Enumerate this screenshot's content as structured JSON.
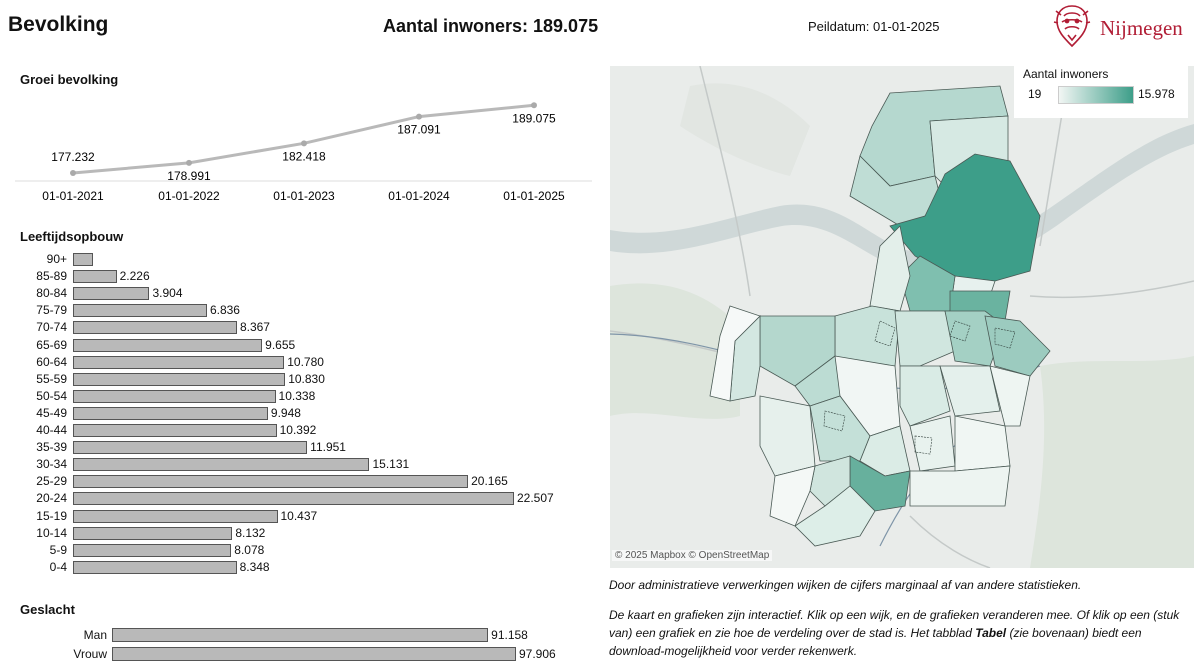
{
  "header": {
    "title": "Bevolking",
    "population": "Aantal inwoners: 189.075",
    "date": "Peildatum: 01-01-2025",
    "logo_text": "Nijmegen"
  },
  "growth": {
    "title": "Groei bevolking",
    "chart_data": {
      "type": "line",
      "categories": [
        "01-01-2021",
        "01-01-2022",
        "01-01-2023",
        "01-01-2024",
        "01-01-2025"
      ],
      "values": [
        177232,
        178991,
        182418,
        187091,
        189075
      ],
      "labels": [
        "177.232",
        "178.991",
        "182.418",
        "187.091",
        "189.075"
      ],
      "title": "Groei bevolking",
      "ylim": [
        176000,
        190000
      ],
      "color": "#b9b9b9"
    }
  },
  "age": {
    "title": "Leeftijdsopbouw",
    "chart_data": {
      "type": "bar",
      "orientation": "horizontal",
      "title": "Leeftijdsopbouw",
      "xlim": [
        0,
        22507
      ],
      "color": "#b9b9b9",
      "categories": [
        "90+",
        "85-89",
        "80-84",
        "75-79",
        "70-74",
        "65-69",
        "60-64",
        "55-59",
        "50-54",
        "45-49",
        "40-44",
        "35-39",
        "30-34",
        "25-29",
        "20-24",
        "15-19",
        "10-14",
        "5-9",
        "0-4"
      ],
      "values": [
        900,
        2226,
        3904,
        6836,
        8367,
        9655,
        10780,
        10830,
        10338,
        9948,
        10392,
        11951,
        15131,
        20165,
        22507,
        10437,
        8132,
        8078,
        8348
      ],
      "labels": [
        "",
        "2.226",
        "3.904",
        "6.836",
        "8.367",
        "9.655",
        "10.780",
        "10.830",
        "10.338",
        "9.948",
        "10.392",
        "11.951",
        "15.131",
        "20.165",
        "22.507",
        "10.437",
        "8.132",
        "8.078",
        "8.348"
      ]
    }
  },
  "sex": {
    "title": "Geslacht",
    "chart_data": {
      "type": "bar",
      "orientation": "horizontal",
      "title": "Geslacht",
      "xlim": [
        0,
        97906
      ],
      "color": "#b9b9b9",
      "categories": [
        "Man",
        "Vrouw"
      ],
      "values": [
        91158,
        97906
      ],
      "labels": [
        "91.158",
        "97.906"
      ]
    }
  },
  "map": {
    "legend_title": "Aantal inwoners",
    "legend_min": "19",
    "legend_max": "15.978",
    "ramp_start": "#f2f6f4",
    "ramp_end": "#3d9e89",
    "attribution": "© 2025 Mapbox  © OpenStreetMap"
  },
  "notes": {
    "line1": "Door administratieve verwerkingen wijken de cijfers marginaal af van andere statistieken.",
    "line2_part1": "De kaart en grafieken zijn interactief. Klik op een wijk, en de grafieken veranderen mee. Of klik op een (stuk van) een grafiek en zie hoe de verdeling over de stad is. Het tabblad ",
    "line2_bold": "Tabel",
    "line2_part2": " (zie bovenaan) biedt een download-mogelijkheid voor verder rekenwerk."
  }
}
